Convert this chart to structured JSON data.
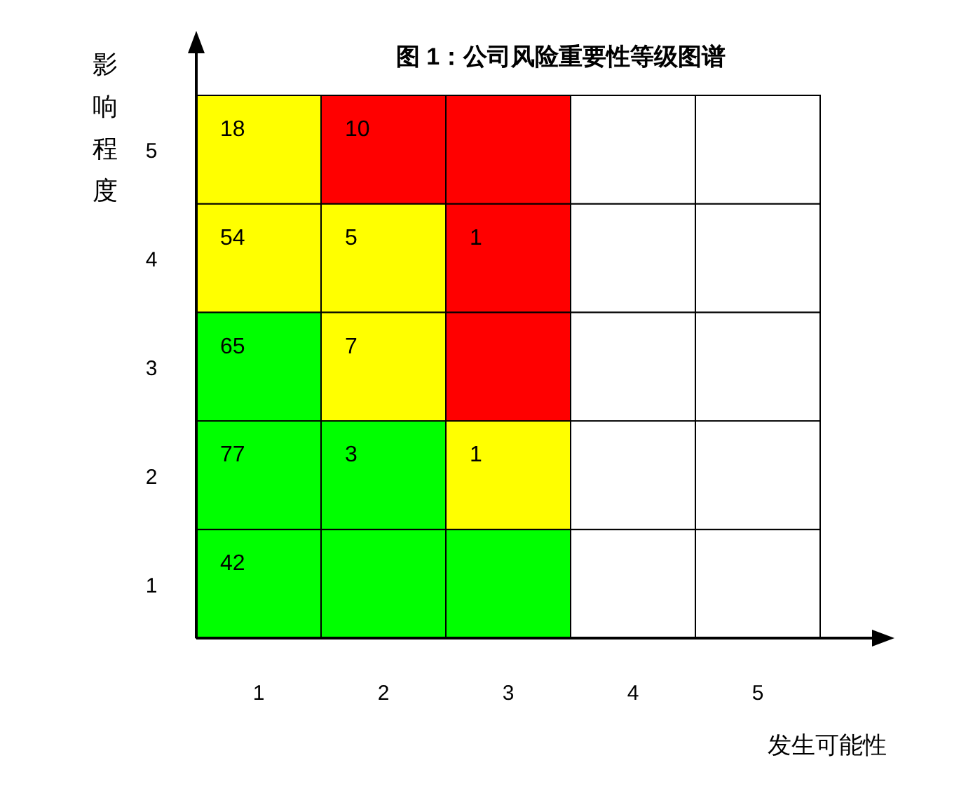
{
  "chart_data": {
    "type": "heatmap",
    "title": "图 1：公司风险重要性等级图谱",
    "xlabel": "发生可能性",
    "ylabel": "影响程度",
    "categories": [
      "1",
      "2",
      "3",
      "4",
      "5"
    ],
    "y_categories": [
      "5",
      "4",
      "3",
      "2",
      "1"
    ],
    "data_labels": true,
    "cells": [
      [
        18,
        10,
        null,
        null,
        null
      ],
      [
        54,
        5,
        1,
        null,
        null
      ],
      [
        65,
        7,
        null,
        null,
        null
      ],
      [
        77,
        3,
        1,
        null,
        null
      ],
      [
        42,
        null,
        null,
        null,
        null
      ]
    ],
    "colors": [
      [
        "#ffff00",
        "#ff0000",
        "#ff0000",
        "#ffffff",
        "#ffffff"
      ],
      [
        "#ffff00",
        "#ffff00",
        "#ff0000",
        "#ffffff",
        "#ffffff"
      ],
      [
        "#00ff00",
        "#ffff00",
        "#ff0000",
        "#ffffff",
        "#ffffff"
      ],
      [
        "#00ff00",
        "#00ff00",
        "#ffff00",
        "#ffffff",
        "#ffffff"
      ],
      [
        "#00ff00",
        "#00ff00",
        "#00ff00",
        "#ffffff",
        "#ffffff"
      ]
    ]
  }
}
